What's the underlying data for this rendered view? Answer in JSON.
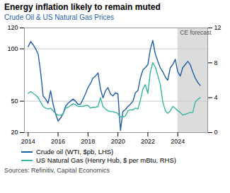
{
  "chart_data": {
    "type": "line",
    "title": "Energy inflation likely to remain muted",
    "subtitle": "Crude Oil & US Natural Gas Prices",
    "source": "Sources: Refinitiv, Capital Economics",
    "shaded_region": {
      "x": [
        2024.0,
        2026.0
      ],
      "color": "#DCDCDC",
      "label": "CE forecast"
    },
    "x": [
      2014.0,
      2014.17,
      2014.33,
      2014.5,
      2014.67,
      2014.83,
      2015.0,
      2015.17,
      2015.33,
      2015.5,
      2015.67,
      2015.83,
      2016.0,
      2016.17,
      2016.33,
      2016.5,
      2016.67,
      2016.83,
      2017.0,
      2017.17,
      2017.33,
      2017.5,
      2017.67,
      2017.83,
      2018.0,
      2018.17,
      2018.33,
      2018.5,
      2018.67,
      2018.83,
      2019.0,
      2019.17,
      2019.33,
      2019.5,
      2019.67,
      2019.83,
      2020.0,
      2020.08,
      2020.17,
      2020.33,
      2020.5,
      2020.67,
      2020.83,
      2021.0,
      2021.17,
      2021.33,
      2021.5,
      2021.67,
      2021.83,
      2022.0,
      2022.17,
      2022.33,
      2022.5,
      2022.67,
      2022.83,
      2023.0,
      2023.17,
      2023.33,
      2023.5,
      2023.67,
      2023.83,
      2024.0,
      2024.17,
      2024.33,
      2024.5,
      2024.67,
      2024.83,
      2025.0,
      2025.17,
      2025.33,
      2025.5
    ],
    "series": [
      {
        "name": "Crude oil (WTI, $pb, LHS)",
        "color": "#1F5EA8",
        "values": [
          102,
          107,
          104,
          100,
          95,
          78,
          55,
          52,
          48,
          60,
          47,
          38,
          31,
          34,
          38,
          45,
          48,
          50,
          52,
          50,
          47,
          47,
          52,
          57,
          63,
          67,
          72,
          74,
          77,
          62,
          53,
          60,
          63,
          57,
          55,
          58,
          57,
          40,
          22,
          40,
          42,
          45,
          47,
          50,
          58,
          60,
          72,
          80,
          82,
          85,
          100,
          108,
          95,
          88,
          82,
          78,
          73,
          70,
          82,
          85,
          90,
          78,
          74,
          82,
          85,
          88,
          85,
          78,
          72,
          68,
          65
        ]
      },
      {
        "name": "US Natural Gas (Henry Hub, $ per mBtu, RHS)",
        "color": "#35B5A0",
        "axis": "y2",
        "values": [
          4.5,
          4.7,
          4.5,
          4.3,
          4.0,
          3.5,
          3.0,
          2.8,
          2.7,
          2.8,
          2.5,
          2.2,
          2.0,
          2.0,
          2.1,
          2.8,
          2.9,
          3.1,
          3.3,
          3.2,
          3.0,
          3.0,
          3.0,
          3.1,
          3.1,
          2.8,
          2.9,
          2.9,
          3.0,
          4.0,
          3.0,
          2.7,
          2.5,
          2.4,
          2.4,
          2.3,
          2.2,
          1.9,
          1.8,
          1.8,
          1.9,
          2.5,
          2.6,
          2.6,
          2.8,
          2.7,
          3.7,
          5.0,
          5.5,
          4.5,
          7.0,
          8.0,
          7.5,
          6.5,
          5.5,
          3.5,
          2.5,
          2.2,
          2.5,
          3.0,
          2.8,
          2.5,
          2.3,
          2.0,
          2.1,
          2.2,
          2.3,
          2.3,
          3.5,
          3.8,
          4.0
        ]
      }
    ],
    "xlim": [
      2013.75,
      2026.0
    ],
    "xticks": [
      2014,
      2016,
      2018,
      2020,
      2022,
      2024
    ],
    "ylim": [
      20,
      120
    ],
    "yticks": [
      20,
      50,
      100,
      120
    ],
    "y2lim": [
      0,
      12
    ],
    "y2ticks": [
      0,
      4,
      8,
      12
    ],
    "grid": true,
    "legend": "bottom"
  }
}
